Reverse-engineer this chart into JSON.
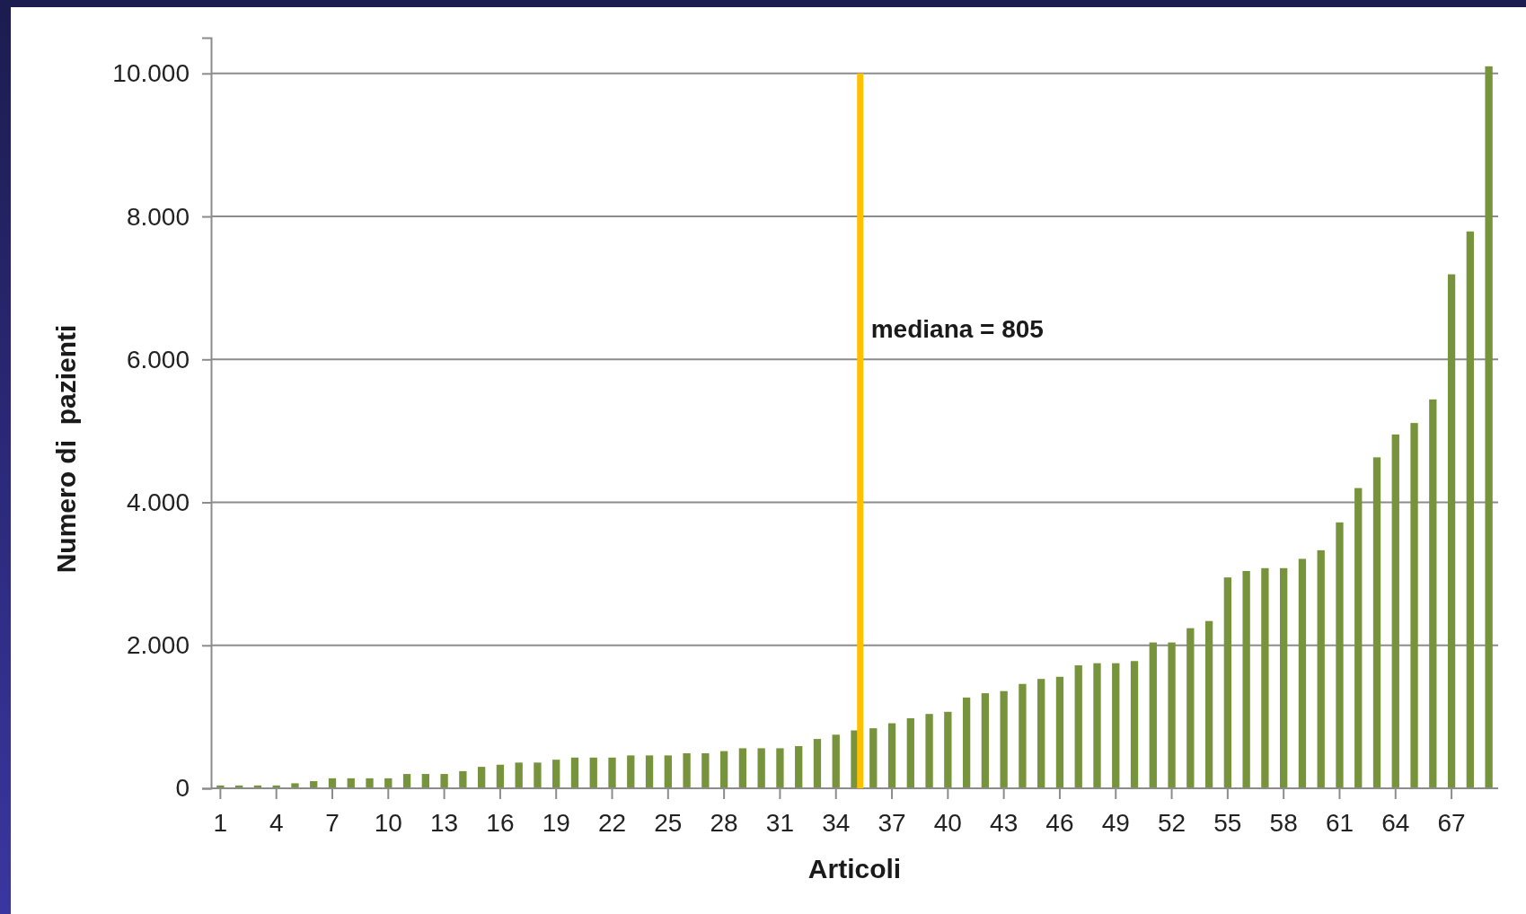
{
  "chart_data": {
    "type": "bar",
    "xlabel": "Articoli",
    "ylabel": "Numero di  pazienti",
    "x": [
      1,
      2,
      3,
      4,
      5,
      6,
      7,
      8,
      9,
      10,
      11,
      12,
      13,
      14,
      15,
      16,
      17,
      18,
      19,
      20,
      21,
      22,
      23,
      24,
      25,
      26,
      27,
      28,
      29,
      30,
      31,
      32,
      33,
      34,
      35,
      36,
      37,
      38,
      39,
      40,
      41,
      42,
      43,
      44,
      45,
      46,
      47,
      48,
      49,
      50,
      51,
      52,
      53,
      54,
      55,
      56,
      57,
      58,
      59,
      60,
      61,
      62,
      63,
      64,
      65,
      66,
      67,
      68,
      69
    ],
    "values": [
      40,
      40,
      40,
      40,
      70,
      100,
      140,
      140,
      140,
      140,
      200,
      200,
      200,
      240,
      300,
      330,
      360,
      360,
      400,
      430,
      430,
      430,
      460,
      460,
      460,
      490,
      490,
      520,
      560,
      560,
      560,
      590,
      690,
      750,
      810,
      840,
      910,
      980,
      1040,
      1070,
      1270,
      1330,
      1360,
      1460,
      1530,
      1560,
      1720,
      1750,
      1750,
      1780,
      2040,
      2040,
      2240,
      2340,
      2950,
      3040,
      3080,
      3080,
      3210,
      3330,
      3720,
      4200,
      4630,
      4950,
      5110,
      5440,
      7190,
      7790,
      10100
    ],
    "color": "#77933c",
    "xlim": [
      0.5,
      69.5
    ],
    "xticks": [
      1,
      4,
      7,
      10,
      13,
      16,
      19,
      22,
      25,
      28,
      31,
      34,
      37,
      40,
      43,
      46,
      49,
      52,
      55,
      58,
      61,
      64,
      67
    ],
    "ylim": [
      0,
      10500
    ],
    "yticks": [
      0,
      {
        "value": 2000,
        "label": "2.000"
      },
      {
        "value": 4000,
        "label": "4.000"
      },
      {
        "value": 6000,
        "label": "6.000"
      },
      {
        "value": 8000,
        "label": "8.000"
      },
      {
        "value": 10000,
        "label": "10.000"
      }
    ],
    "grid": "y",
    "ref_lines": [
      {
        "axis": "x",
        "value": 35.3,
        "color": "#ffc000"
      }
    ],
    "annotations": [
      "mediana = 805"
    ]
  }
}
